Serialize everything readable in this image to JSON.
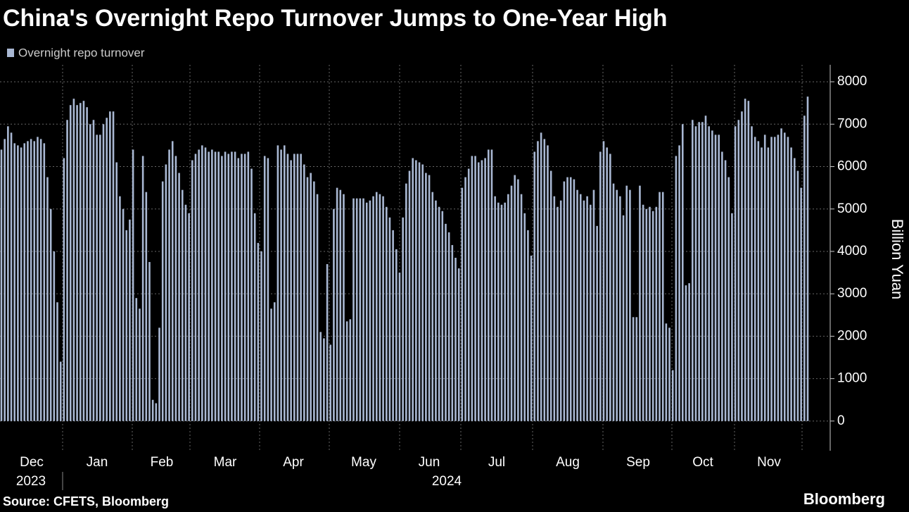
{
  "chart_data": {
    "type": "bar",
    "title": "China's Overnight Repo Turnover Jumps to One-Year High",
    "legend": "Overnight repo turnover",
    "ylabel": "Billion Yuan",
    "source": "Source: CFETS, Bloomberg",
    "brand": "Bloomberg",
    "months": [
      "Dec",
      "Jan",
      "Feb",
      "Mar",
      "Apr",
      "May",
      "Jun",
      "Jul",
      "Aug",
      "Sep",
      "Oct",
      "Nov"
    ],
    "years": [
      "2023",
      "2024"
    ],
    "color": "#a9b8d3",
    "ylim": [
      -700,
      8400
    ],
    "yticks": [
      0,
      1000,
      2000,
      3000,
      4000,
      5000,
      6000,
      7000,
      8000
    ],
    "grid": true,
    "values": [
      6400,
      6650,
      6950,
      6800,
      6550,
      6500,
      6450,
      6550,
      6600,
      6650,
      6600,
      6700,
      6650,
      6550,
      5750,
      5000,
      4000,
      2800,
      1400,
      6200,
      7100,
      7450,
      7600,
      7450,
      7500,
      7550,
      7400,
      7000,
      7100,
      6750,
      6750,
      7000,
      7150,
      7300,
      7300,
      6100,
      5300,
      5000,
      4500,
      4750,
      6400,
      2900,
      2650,
      6250,
      5400,
      3750,
      500,
      420,
      2200,
      5650,
      6050,
      6400,
      6600,
      6250,
      5850,
      5450,
      5100,
      4900,
      6150,
      6300,
      6400,
      6500,
      6450,
      6350,
      6400,
      6350,
      6350,
      6250,
      6350,
      6300,
      6350,
      6350,
      6200,
      6300,
      6300,
      6350,
      5950,
      4900,
      4200,
      4000,
      6250,
      6200,
      2650,
      2800,
      6500,
      6400,
      6500,
      6300,
      6150,
      6300,
      6300,
      6300,
      6050,
      5750,
      5850,
      5650,
      5350,
      2100,
      1950,
      3700,
      1800,
      5000,
      5500,
      5450,
      5350,
      2350,
      2400,
      5250,
      5250,
      5250,
      5250,
      5150,
      5200,
      5300,
      5400,
      5350,
      5300,
      5050,
      4800,
      4500,
      4050,
      3500,
      4800,
      5600,
      5900,
      6200,
      6150,
      6100,
      6050,
      5850,
      5800,
      5400,
      5200,
      5050,
      4950,
      4650,
      4450,
      4150,
      3850,
      3600,
      5500,
      5750,
      5950,
      6250,
      6250,
      6100,
      6150,
      6200,
      6400,
      6400,
      5300,
      5150,
      5100,
      5150,
      5350,
      5550,
      5800,
      5700,
      5350,
      4900,
      4500,
      3900,
      6350,
      6600,
      6800,
      6650,
      6500,
      5900,
      5300,
      5050,
      5200,
      5650,
      5750,
      5750,
      5700,
      5450,
      5350,
      5200,
      5300,
      5100,
      5450,
      4600,
      6350,
      6600,
      6450,
      6300,
      5600,
      5450,
      5300,
      4850,
      5550,
      5450,
      2450,
      2450,
      5550,
      5100,
      5000,
      5050,
      4950,
      5050,
      5400,
      5400,
      2300,
      2200,
      1200,
      6250,
      6500,
      7000,
      3200,
      3250,
      7100,
      6950,
      7050,
      7050,
      7200,
      6950,
      6850,
      6750,
      6750,
      6350,
      6150,
      5750,
      4900,
      6950,
      7100,
      7300,
      7600,
      7550,
      6950,
      6700,
      6600,
      6450,
      6750,
      6450,
      6700,
      6700,
      6750,
      6900,
      6800,
      6700,
      6450,
      6200,
      5900,
      5500,
      7200,
      7650
    ]
  }
}
